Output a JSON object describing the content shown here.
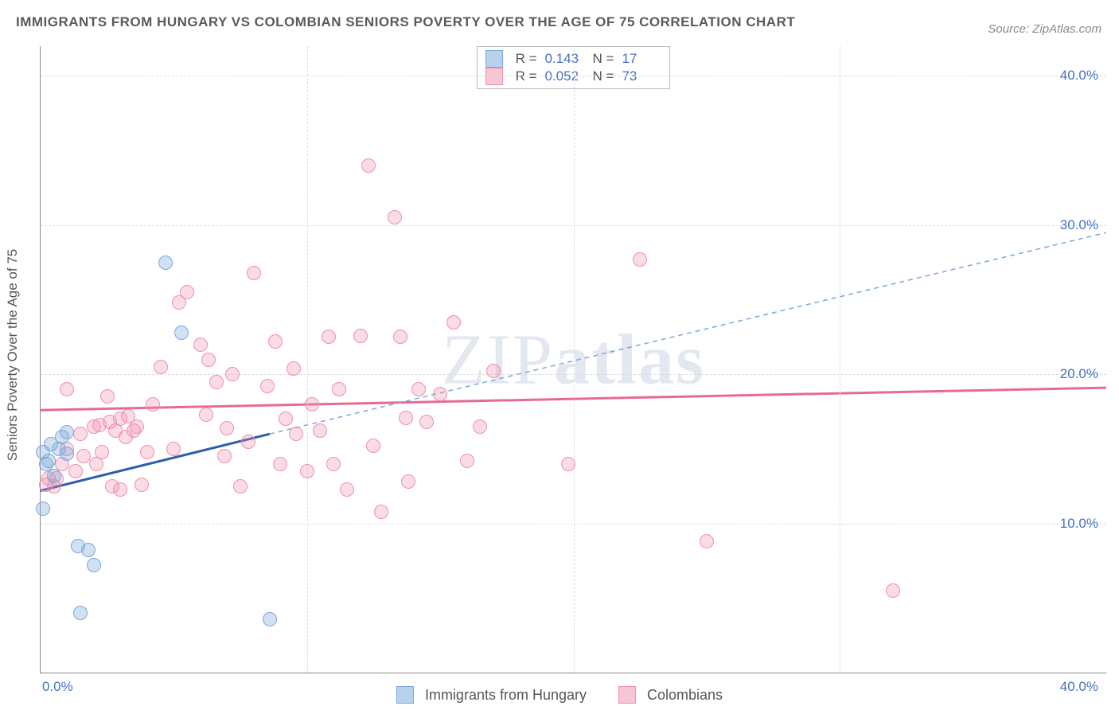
{
  "title": "IMMIGRANTS FROM HUNGARY VS COLOMBIAN SENIORS POVERTY OVER THE AGE OF 75 CORRELATION CHART",
  "title_fontsize": 17,
  "title_color": "#5a5a5a",
  "source_label": "Source: ",
  "source_value": "ZipAtlas.com",
  "source_fontsize": 15,
  "watermark": {
    "part1": "ZIP",
    "part2": "atlas"
  },
  "ylabel": "Seniors Poverty Over the Age of 75",
  "axes": {
    "xlim": [
      0,
      40
    ],
    "ylim": [
      0,
      42
    ],
    "x_ticks": [
      0,
      40
    ],
    "x_tick_labels": [
      "0.0%",
      "40.0%"
    ],
    "x_gridlines": [
      10,
      20,
      30
    ],
    "y_ticks": [
      10,
      20,
      30,
      40
    ],
    "y_tick_labels": [
      "10.0%",
      "20.0%",
      "30.0%",
      "40.0%"
    ],
    "tick_color": "#4472c4",
    "tick_fontsize": 17,
    "grid_color": "#dddddd"
  },
  "series": {
    "hungary": {
      "label": "Immigrants from Hungary",
      "fill": "rgba(122,168,219,0.35)",
      "stroke": "#7aa8db",
      "swatch_fill": "#b8d1ed",
      "swatch_border": "#7aa8db",
      "marker_radius": 9,
      "R_label": "R  =",
      "R": "0.143",
      "N_label": "N  =",
      "N": "17",
      "trend_solid": {
        "x1": 0,
        "y1": 12.2,
        "x2": 8.6,
        "y2": 16.0,
        "color": "#2b5faa",
        "width": 3
      },
      "trend_dashed": {
        "x1": 8.6,
        "y1": 16.0,
        "x2": 40,
        "y2": 29.5,
        "color": "#7aa8db",
        "width": 1.5,
        "dash": "6,5"
      },
      "points": [
        [
          0.1,
          14.8
        ],
        [
          0.1,
          11.0
        ],
        [
          0.2,
          14.0
        ],
        [
          0.3,
          14.2
        ],
        [
          0.4,
          15.3
        ],
        [
          0.5,
          13.2
        ],
        [
          0.7,
          15.0
        ],
        [
          0.8,
          15.8
        ],
        [
          1.0,
          16.1
        ],
        [
          1.0,
          14.7
        ],
        [
          1.4,
          8.5
        ],
        [
          1.8,
          8.2
        ],
        [
          2.0,
          7.2
        ],
        [
          1.5,
          4.0
        ],
        [
          4.7,
          27.5
        ],
        [
          5.3,
          22.8
        ],
        [
          8.6,
          3.6
        ]
      ]
    },
    "colombians": {
      "label": "Colombians",
      "fill": "rgba(240,140,170,0.30)",
      "stroke": "#ef8fae",
      "swatch_fill": "#f7c6d4",
      "swatch_border": "#ef8fae",
      "marker_radius": 9,
      "R_label": "R  =",
      "R": "0.052",
      "N_label": "N  =",
      "N": "73",
      "trend_solid": {
        "x1": 0,
        "y1": 17.6,
        "x2": 40,
        "y2": 19.1,
        "color": "#e76a92",
        "width": 3
      },
      "points": [
        [
          0.2,
          12.6
        ],
        [
          0.3,
          13.0
        ],
        [
          0.5,
          12.5
        ],
        [
          0.6,
          13.0
        ],
        [
          1.0,
          15.0
        ],
        [
          1.0,
          19.0
        ],
        [
          1.3,
          13.5
        ],
        [
          1.5,
          16.0
        ],
        [
          1.6,
          14.5
        ],
        [
          2.0,
          16.5
        ],
        [
          2.1,
          14.0
        ],
        [
          2.2,
          16.6
        ],
        [
          2.3,
          14.8
        ],
        [
          2.5,
          18.5
        ],
        [
          2.6,
          16.8
        ],
        [
          2.7,
          12.5
        ],
        [
          2.8,
          16.2
        ],
        [
          3.0,
          17.0
        ],
        [
          3.0,
          12.3
        ],
        [
          3.2,
          15.8
        ],
        [
          3.3,
          17.2
        ],
        [
          3.5,
          16.2
        ],
        [
          3.6,
          16.5
        ],
        [
          3.8,
          12.6
        ],
        [
          4.0,
          14.8
        ],
        [
          4.2,
          18.0
        ],
        [
          4.5,
          20.5
        ],
        [
          5.0,
          15.0
        ],
        [
          5.2,
          24.8
        ],
        [
          5.5,
          25.5
        ],
        [
          6.0,
          22.0
        ],
        [
          6.2,
          17.3
        ],
        [
          6.3,
          21.0
        ],
        [
          6.6,
          19.5
        ],
        [
          6.9,
          14.5
        ],
        [
          7.0,
          16.4
        ],
        [
          7.2,
          20.0
        ],
        [
          7.5,
          12.5
        ],
        [
          7.8,
          15.5
        ],
        [
          8.0,
          26.8
        ],
        [
          8.5,
          19.2
        ],
        [
          8.8,
          22.2
        ],
        [
          9.0,
          14.0
        ],
        [
          9.2,
          17.0
        ],
        [
          9.5,
          20.4
        ],
        [
          9.6,
          16.0
        ],
        [
          10.0,
          13.5
        ],
        [
          10.2,
          18.0
        ],
        [
          10.5,
          16.2
        ],
        [
          10.8,
          22.5
        ],
        [
          11.0,
          14.0
        ],
        [
          11.2,
          19.0
        ],
        [
          11.5,
          12.3
        ],
        [
          12.0,
          22.6
        ],
        [
          12.3,
          34.0
        ],
        [
          12.5,
          15.2
        ],
        [
          12.8,
          10.8
        ],
        [
          13.3,
          30.5
        ],
        [
          13.5,
          22.5
        ],
        [
          13.7,
          17.1
        ],
        [
          13.8,
          12.8
        ],
        [
          14.2,
          19.0
        ],
        [
          14.5,
          16.8
        ],
        [
          15.0,
          18.7
        ],
        [
          15.5,
          23.5
        ],
        [
          16.0,
          14.2
        ],
        [
          16.5,
          16.5
        ],
        [
          17.0,
          20.2
        ],
        [
          19.8,
          14.0
        ],
        [
          22.5,
          27.7
        ],
        [
          25.0,
          8.8
        ],
        [
          32.0,
          5.5
        ],
        [
          0.8,
          14.0
        ]
      ]
    }
  }
}
